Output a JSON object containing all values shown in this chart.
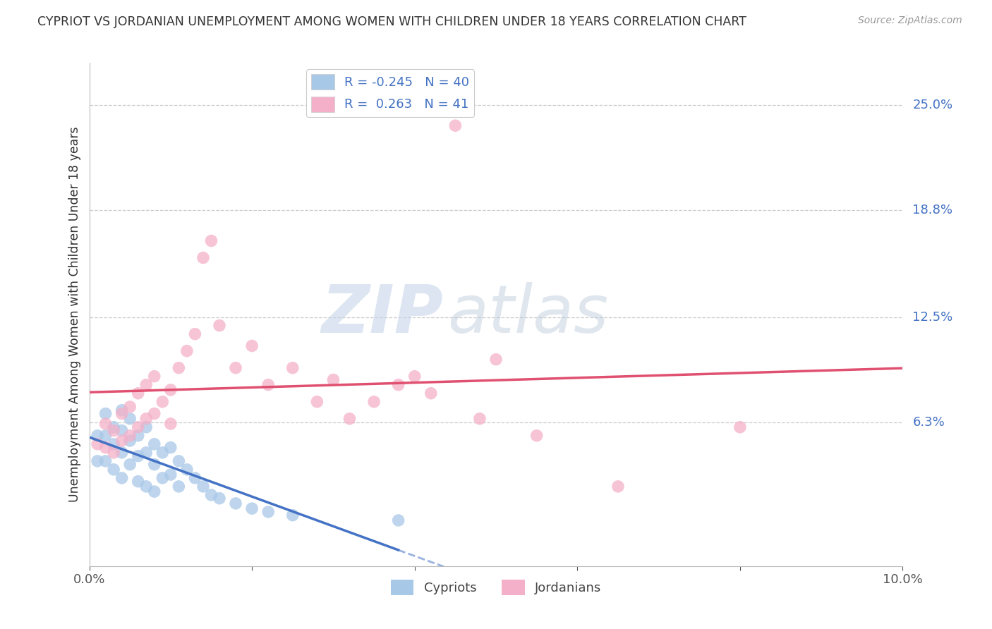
{
  "title": "CYPRIOT VS JORDANIAN UNEMPLOYMENT AMONG WOMEN WITH CHILDREN UNDER 18 YEARS CORRELATION CHART",
  "source": "Source: ZipAtlas.com",
  "ylabel": "Unemployment Among Women with Children Under 18 years",
  "xlim": [
    0.0,
    0.1
  ],
  "ylim": [
    -0.022,
    0.275
  ],
  "ytick_positions": [
    0.063,
    0.125,
    0.188,
    0.25
  ],
  "ytick_labels": [
    "6.3%",
    "12.5%",
    "18.8%",
    "25.0%"
  ],
  "cypriot_color": "#a8c8e8",
  "jordanian_color": "#f4b0c8",
  "cypriot_line_color": "#4472c4",
  "jordanian_line_color": "#e05070",
  "R_cypriot": -0.245,
  "N_cypriot": 40,
  "R_jordanian": 0.263,
  "N_jordanian": 41,
  "watermark_zip": "ZIP",
  "watermark_atlas": "atlas",
  "background_color": "#ffffff",
  "grid_color": "#cccccc",
  "cypriot_x": [
    0.001,
    0.001,
    0.002,
    0.002,
    0.002,
    0.003,
    0.003,
    0.003,
    0.004,
    0.004,
    0.004,
    0.004,
    0.005,
    0.005,
    0.005,
    0.006,
    0.006,
    0.006,
    0.007,
    0.007,
    0.007,
    0.008,
    0.008,
    0.008,
    0.009,
    0.009,
    0.01,
    0.01,
    0.011,
    0.011,
    0.012,
    0.013,
    0.014,
    0.015,
    0.016,
    0.018,
    0.02,
    0.022,
    0.025,
    0.038
  ],
  "cypriot_y": [
    0.055,
    0.04,
    0.068,
    0.055,
    0.04,
    0.06,
    0.05,
    0.035,
    0.07,
    0.058,
    0.045,
    0.03,
    0.065,
    0.052,
    0.038,
    0.055,
    0.043,
    0.028,
    0.06,
    0.045,
    0.025,
    0.05,
    0.038,
    0.022,
    0.045,
    0.03,
    0.048,
    0.032,
    0.04,
    0.025,
    0.035,
    0.03,
    0.025,
    0.02,
    0.018,
    0.015,
    0.012,
    0.01,
    0.008,
    0.005
  ],
  "jordanian_x": [
    0.001,
    0.002,
    0.002,
    0.003,
    0.003,
    0.004,
    0.004,
    0.005,
    0.005,
    0.006,
    0.006,
    0.007,
    0.007,
    0.008,
    0.008,
    0.009,
    0.01,
    0.01,
    0.011,
    0.012,
    0.013,
    0.014,
    0.015,
    0.016,
    0.018,
    0.02,
    0.022,
    0.025,
    0.028,
    0.03,
    0.032,
    0.035,
    0.038,
    0.04,
    0.042,
    0.045,
    0.048,
    0.05,
    0.055,
    0.065,
    0.08
  ],
  "jordanian_y": [
    0.05,
    0.062,
    0.048,
    0.058,
    0.045,
    0.068,
    0.052,
    0.072,
    0.055,
    0.08,
    0.06,
    0.085,
    0.065,
    0.09,
    0.068,
    0.075,
    0.082,
    0.062,
    0.095,
    0.105,
    0.115,
    0.16,
    0.17,
    0.12,
    0.095,
    0.108,
    0.085,
    0.095,
    0.075,
    0.088,
    0.065,
    0.075,
    0.085,
    0.09,
    0.08,
    0.238,
    0.065,
    0.1,
    0.055,
    0.025,
    0.06
  ]
}
